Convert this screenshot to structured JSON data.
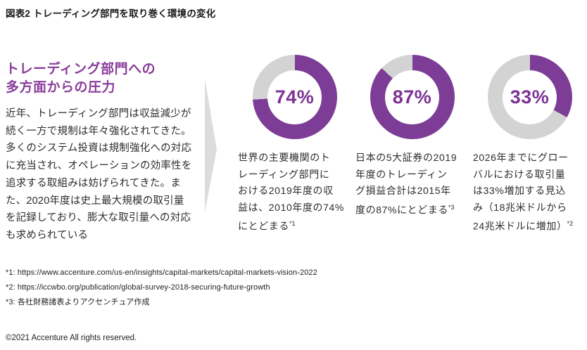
{
  "figure": {
    "title": "図表2 トレーディング部門を取り巻く環境の変化"
  },
  "left_panel": {
    "heading_lines": [
      "トレーディング部門への",
      "多方面からの圧力"
    ],
    "body": "近年、トレーディング部門は収益減少が続く一方で規制は年々強化されてきた。多くのシステム投資は規制強化への対応に充当され、オペレーションの効率性を追求する取組みは妨げられてきた。また、2020年度は史上最大規模の取引量を記録しており、膨大な取引量への対応も求められている",
    "body_lines": [
      "近年、トレーディング部門は収益減少が",
      "続く一方で規制は年々強化されてきた。",
      "多くのシステム投資は規制強化への対応",
      "に充当され、オペレーションの効率性を",
      "追求する取組みは妨げられてきた。ま",
      "た、2020年度は史上最大規模の取引量",
      "を記録しており、膨大な取引量への対応",
      "も求められている"
    ]
  },
  "chart_data": [
    {
      "type": "pie",
      "subtype": "donut",
      "values": [
        74,
        26
      ],
      "center_label": "74%",
      "caption": "世界の主要機関のトレーディング部門における2019年度の収益は、2010年度の74%にとどまる",
      "caption_lines": [
        "世界の主要機関のト",
        "レーディング部門に",
        "おける2019年度の収",
        "益は、2010年度の74%",
        "にとどまる"
      ],
      "footnote_ref": "*1"
    },
    {
      "type": "pie",
      "subtype": "donut",
      "values": [
        87,
        13
      ],
      "center_label": "87%",
      "caption": "日本の5大証券の2019年度のトレーディング損益合計は2015年度の87%にとどまる",
      "caption_lines": [
        "日本の5大証券の2019",
        "年度のトレーディン",
        "グ損益合計は2015年",
        "度の87%にとどまる"
      ],
      "footnote_ref": "*3"
    },
    {
      "type": "pie",
      "subtype": "donut",
      "values": [
        33,
        67
      ],
      "center_label": "33%",
      "caption": "2026年までにグローバルにおける取引量は33%増加する見込み（18兆米ドルから24兆米ドルに増加）",
      "caption_lines": [
        "2026年までにグロー",
        "バルにおける取引量",
        "は33%増加する見込",
        "み（18兆米ドルから",
        "24兆米ドルに増加）"
      ],
      "footnote_ref": "*2"
    }
  ],
  "footnotes": [
    "*1: https://www.accenture.com/us-en/insights/capital-markets/capital-markets-vision-2022",
    "*2: https://iccwbo.org/publication/global-survey-2018-securing-future-growth",
    "*3: 各社財務諸表よりアクセンチュア作成"
  ],
  "copyright": "©2021 Accenture All rights reserved.",
  "colors": {
    "purple": "#7d3d96",
    "heading_purple": "#8a3d9b",
    "ring_gray": "#d3d3d4",
    "arrow_gray": "#dcdcdc"
  }
}
